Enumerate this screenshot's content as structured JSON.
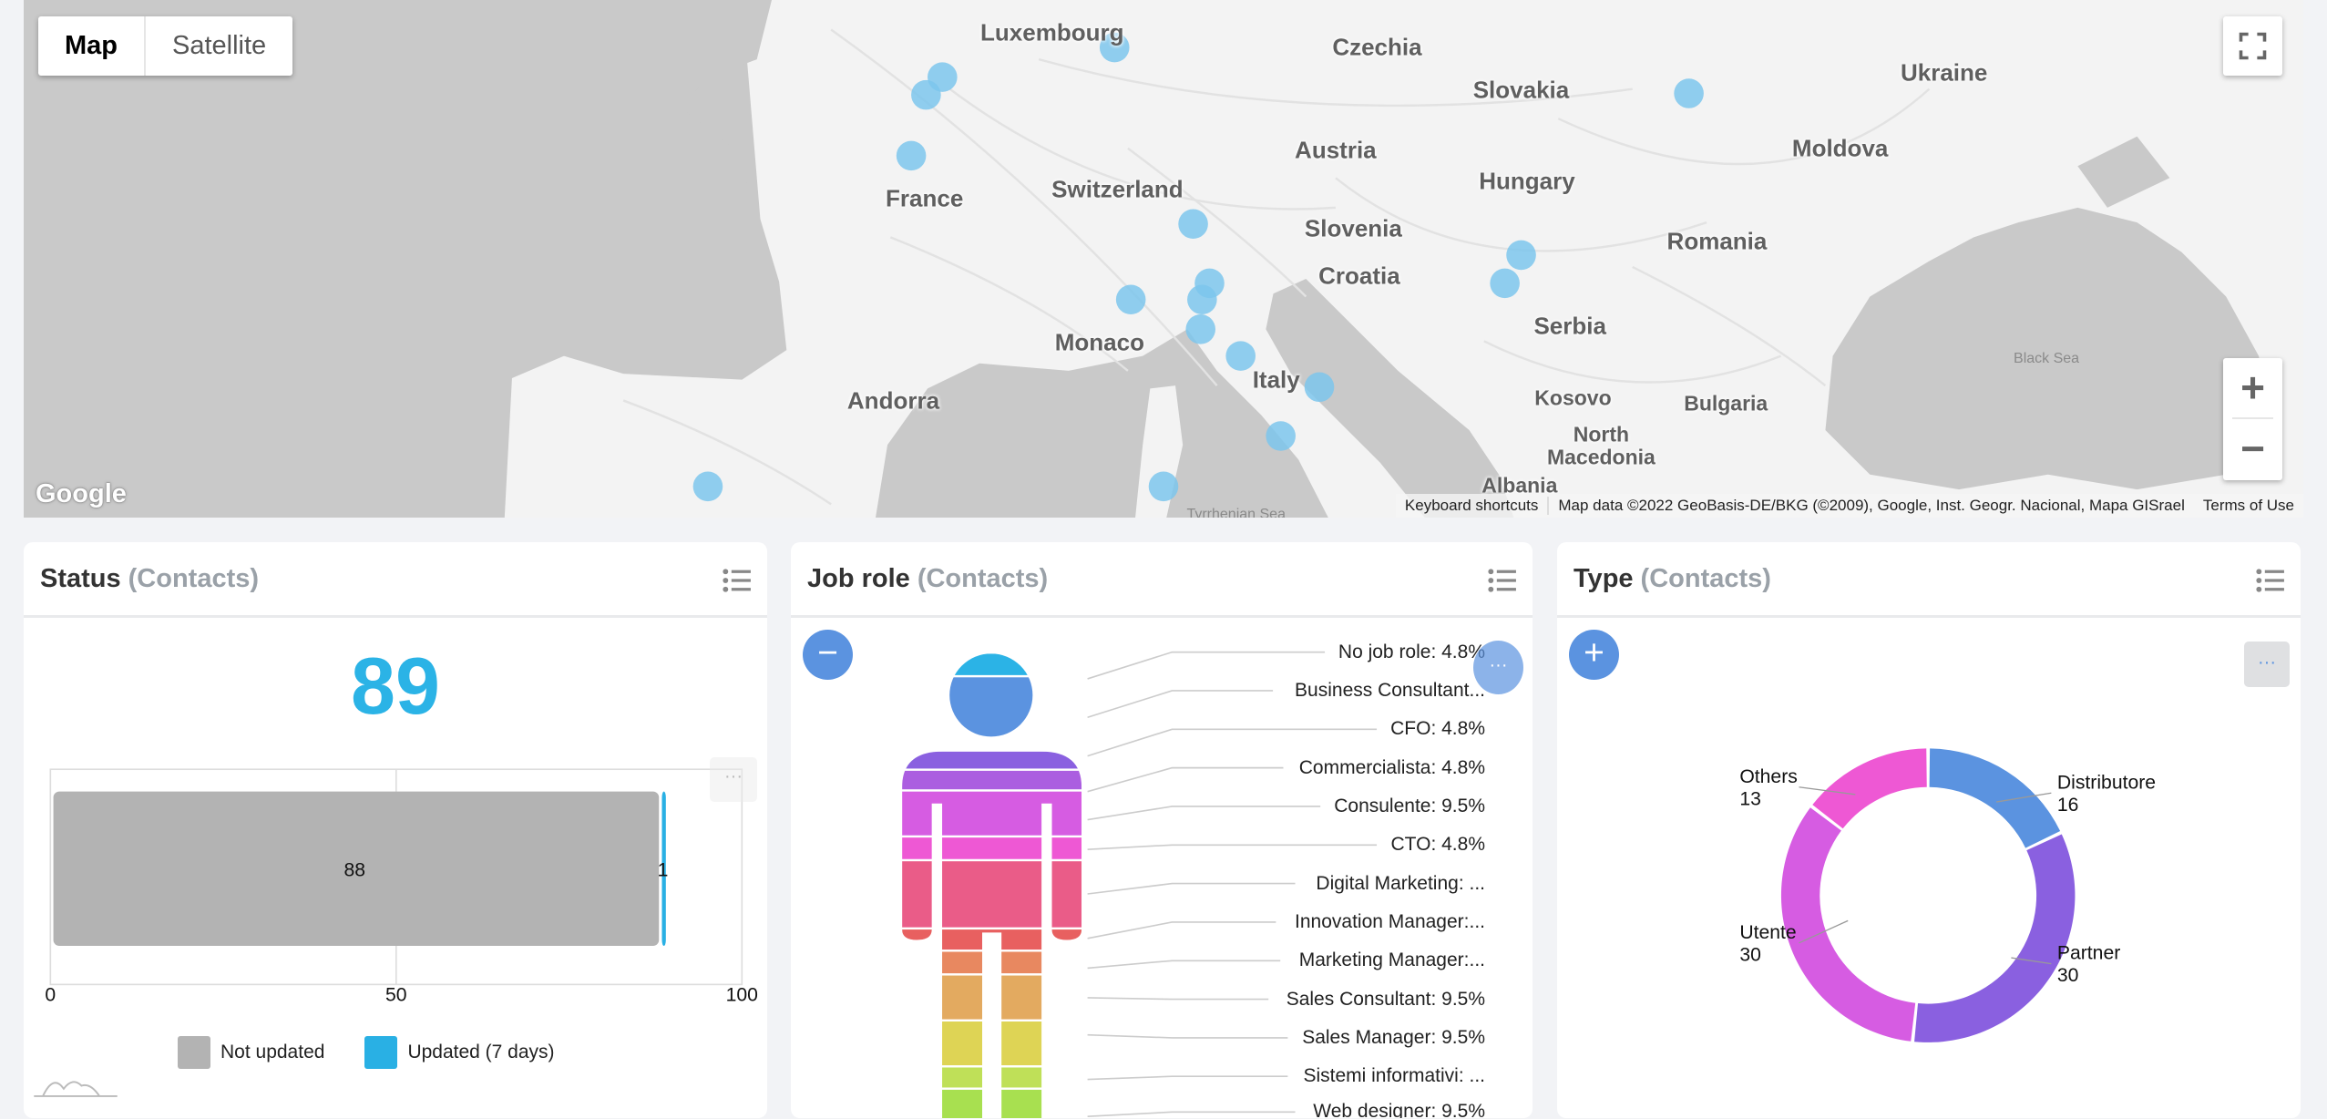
{
  "map": {
    "type_buttons": [
      "Map",
      "Satellite"
    ],
    "active_type": "Map",
    "labels": [
      "Luxembourg",
      "Czechia",
      "Slovakia",
      "Ukraine",
      "Austria",
      "Moldova",
      "France",
      "Switzerland",
      "Hungary",
      "Slovenia",
      "Romania",
      "Croatia",
      "Serbia",
      "Monaco",
      "Italy",
      "Andorra",
      "Kosovo",
      "Bulgaria",
      "North",
      "Macedonia",
      "Albania",
      "Black Sea",
      "Tyrrhenian Sea"
    ],
    "zoom_in": "+",
    "zoom_out": "−",
    "logo": "Google",
    "attribution": {
      "shortcuts": "Keyboard shortcuts",
      "data": "Map data ©2022 GeoBasis-DE/BKG (©2009), Google, Inst. Geogr. Nacional, Mapa GISrael",
      "terms": "Terms of Use"
    },
    "marker_color": "#7cc6ec",
    "icons": {
      "fullscreen": "fullscreen-icon"
    }
  },
  "cards": {
    "status": {
      "title": "Status",
      "subtitle": "(Contacts)",
      "total": "89"
    },
    "job_role": {
      "title": "Job role",
      "subtitle": "(Contacts)",
      "collapse": "−"
    },
    "type": {
      "title": "Type",
      "subtitle": "(Contacts)",
      "expand": "+",
      "more": "···"
    }
  },
  "chart_data": [
    {
      "type": "bar",
      "orientation": "horizontal",
      "stacked": true,
      "series": [
        {
          "name": "Not updated",
          "values": [
            88
          ],
          "color": "#b3b3b3"
        },
        {
          "name": "Updated (7 days)",
          "values": [
            1
          ],
          "color": "#29b0e4"
        }
      ],
      "data_labels": [
        "88",
        "1"
      ],
      "xlim": [
        0,
        100
      ],
      "xticks": [
        "0",
        "50",
        "100"
      ],
      "legend": "bottom"
    },
    {
      "type": "pictorial",
      "labels": [
        "No job role: 4.8%",
        "Business Consultant...",
        "CFO: 4.8%",
        "Commercialista: 4.8%",
        "Consulente: 9.5%",
        "CTO: 4.8%",
        "Digital Marketing: ...",
        "Innovation Manager:...",
        "Marketing Manager:...",
        "Sales Consultant: 9.5%",
        "Sales Manager: 9.5%",
        "Sistemi informativi: ...",
        "Web designer: 9.5%"
      ],
      "values": [
        4.8,
        null,
        4.8,
        4.8,
        9.5,
        4.8,
        null,
        null,
        null,
        9.5,
        9.5,
        null,
        9.5
      ],
      "colors": [
        "#2bb3e6",
        "#5b93e0",
        "#8a60e0",
        "#ab5ee0",
        "#d65ce2",
        "#ee58d4",
        "#ea5c88",
        "#e86060",
        "#e88860",
        "#e3aa60",
        "#ded455",
        "#bfe058",
        "#a8e050"
      ]
    },
    {
      "type": "pie",
      "donut": true,
      "categories": [
        "Distributore",
        "Partner",
        "Utente",
        "Others"
      ],
      "values": [
        16,
        30,
        30,
        13
      ],
      "colors": [
        "#5b93e0",
        "#8a60e0",
        "#d65ce2",
        "#ee58d4"
      ]
    }
  ]
}
